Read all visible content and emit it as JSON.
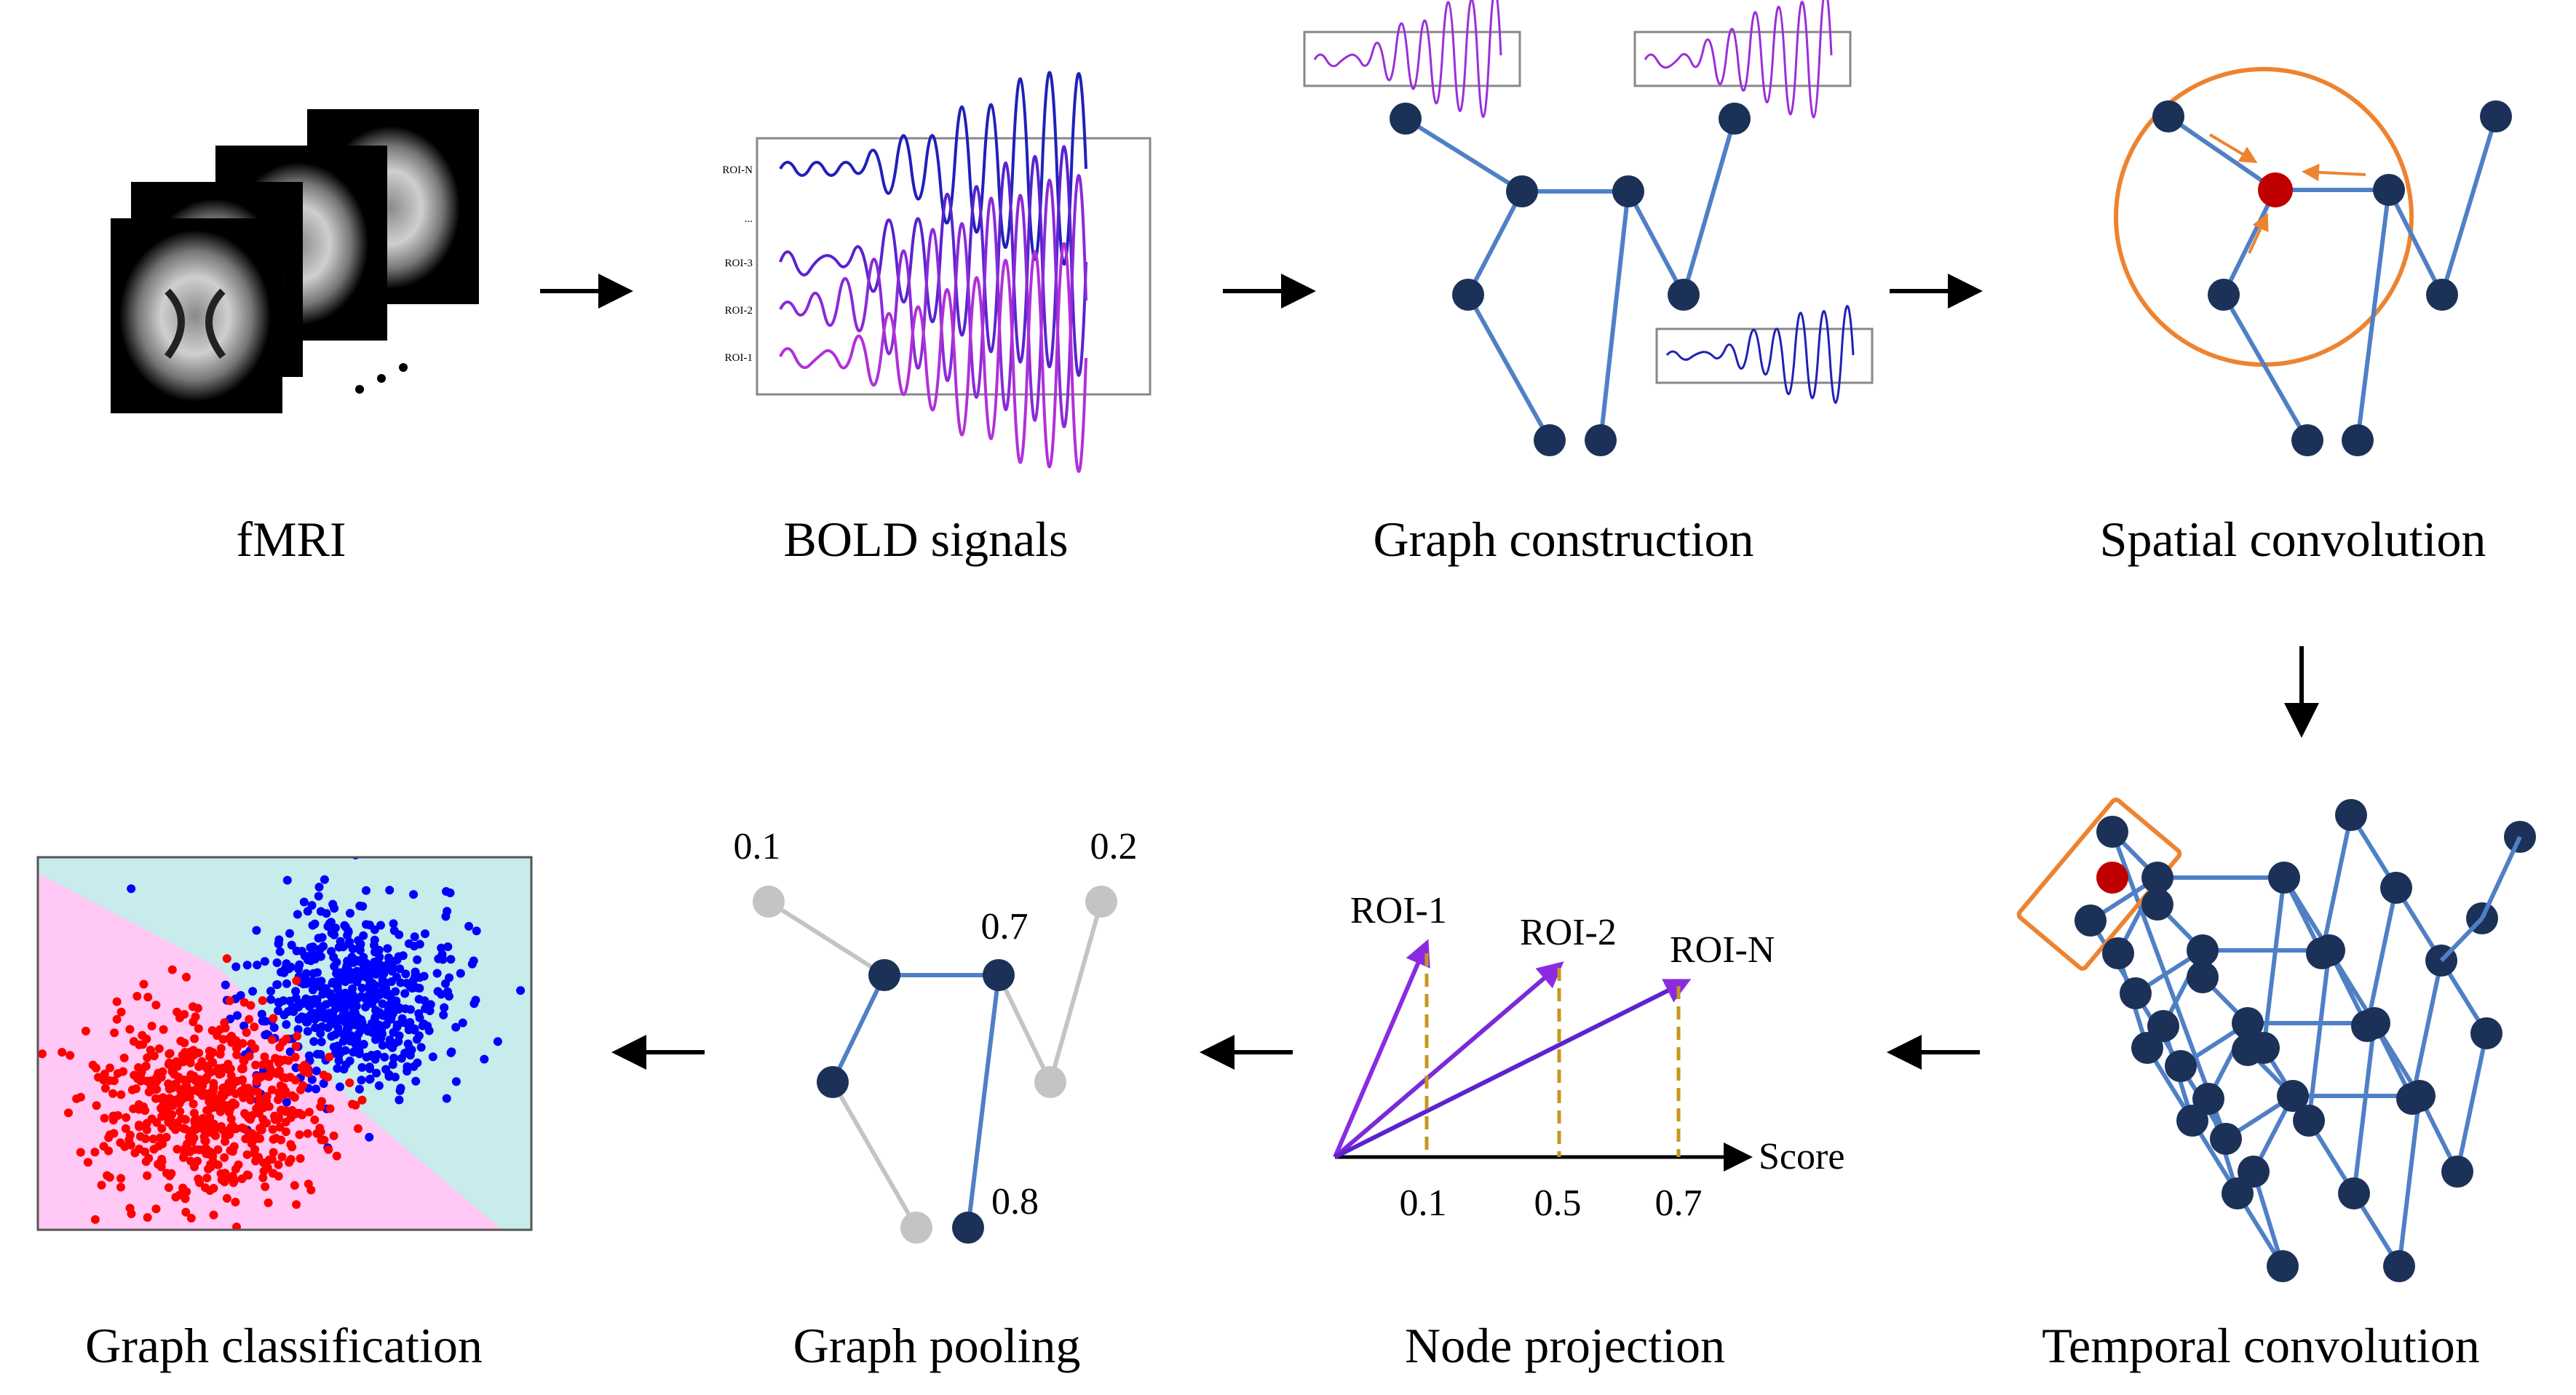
{
  "stages": {
    "fmri": "fMRI",
    "bold": "BOLD signals",
    "graph_construction": "Graph construction",
    "spatial": "Spatial convolution",
    "temporal": "Temporal convolution",
    "projection": "Node projection",
    "pooling": "Graph pooling",
    "classification": "Graph classification"
  },
  "bold_rois": [
    "ROI-N",
    "...",
    "ROI-3",
    "ROI-2",
    "ROI-1"
  ],
  "projection": {
    "rois": [
      {
        "label": "ROI-1",
        "score": "0.1"
      },
      {
        "label": "ROI-2",
        "score": "0.5"
      },
      {
        "label": "ROI-N",
        "score": "0.7"
      }
    ],
    "axis_label": "Score"
  },
  "pooling_scores": [
    "0.1",
    "0.2",
    "0.7",
    "0.8"
  ],
  "colors": {
    "node": "#1c3158",
    "edge": "#4f80c6",
    "pruned": "#c4c4c4",
    "highlight": "#c00000",
    "ring": "#ed8330",
    "class_a": "#ff0000",
    "class_b": "#0000ff",
    "region_a": "#ffc8f5",
    "region_b": "#c8ebec"
  }
}
